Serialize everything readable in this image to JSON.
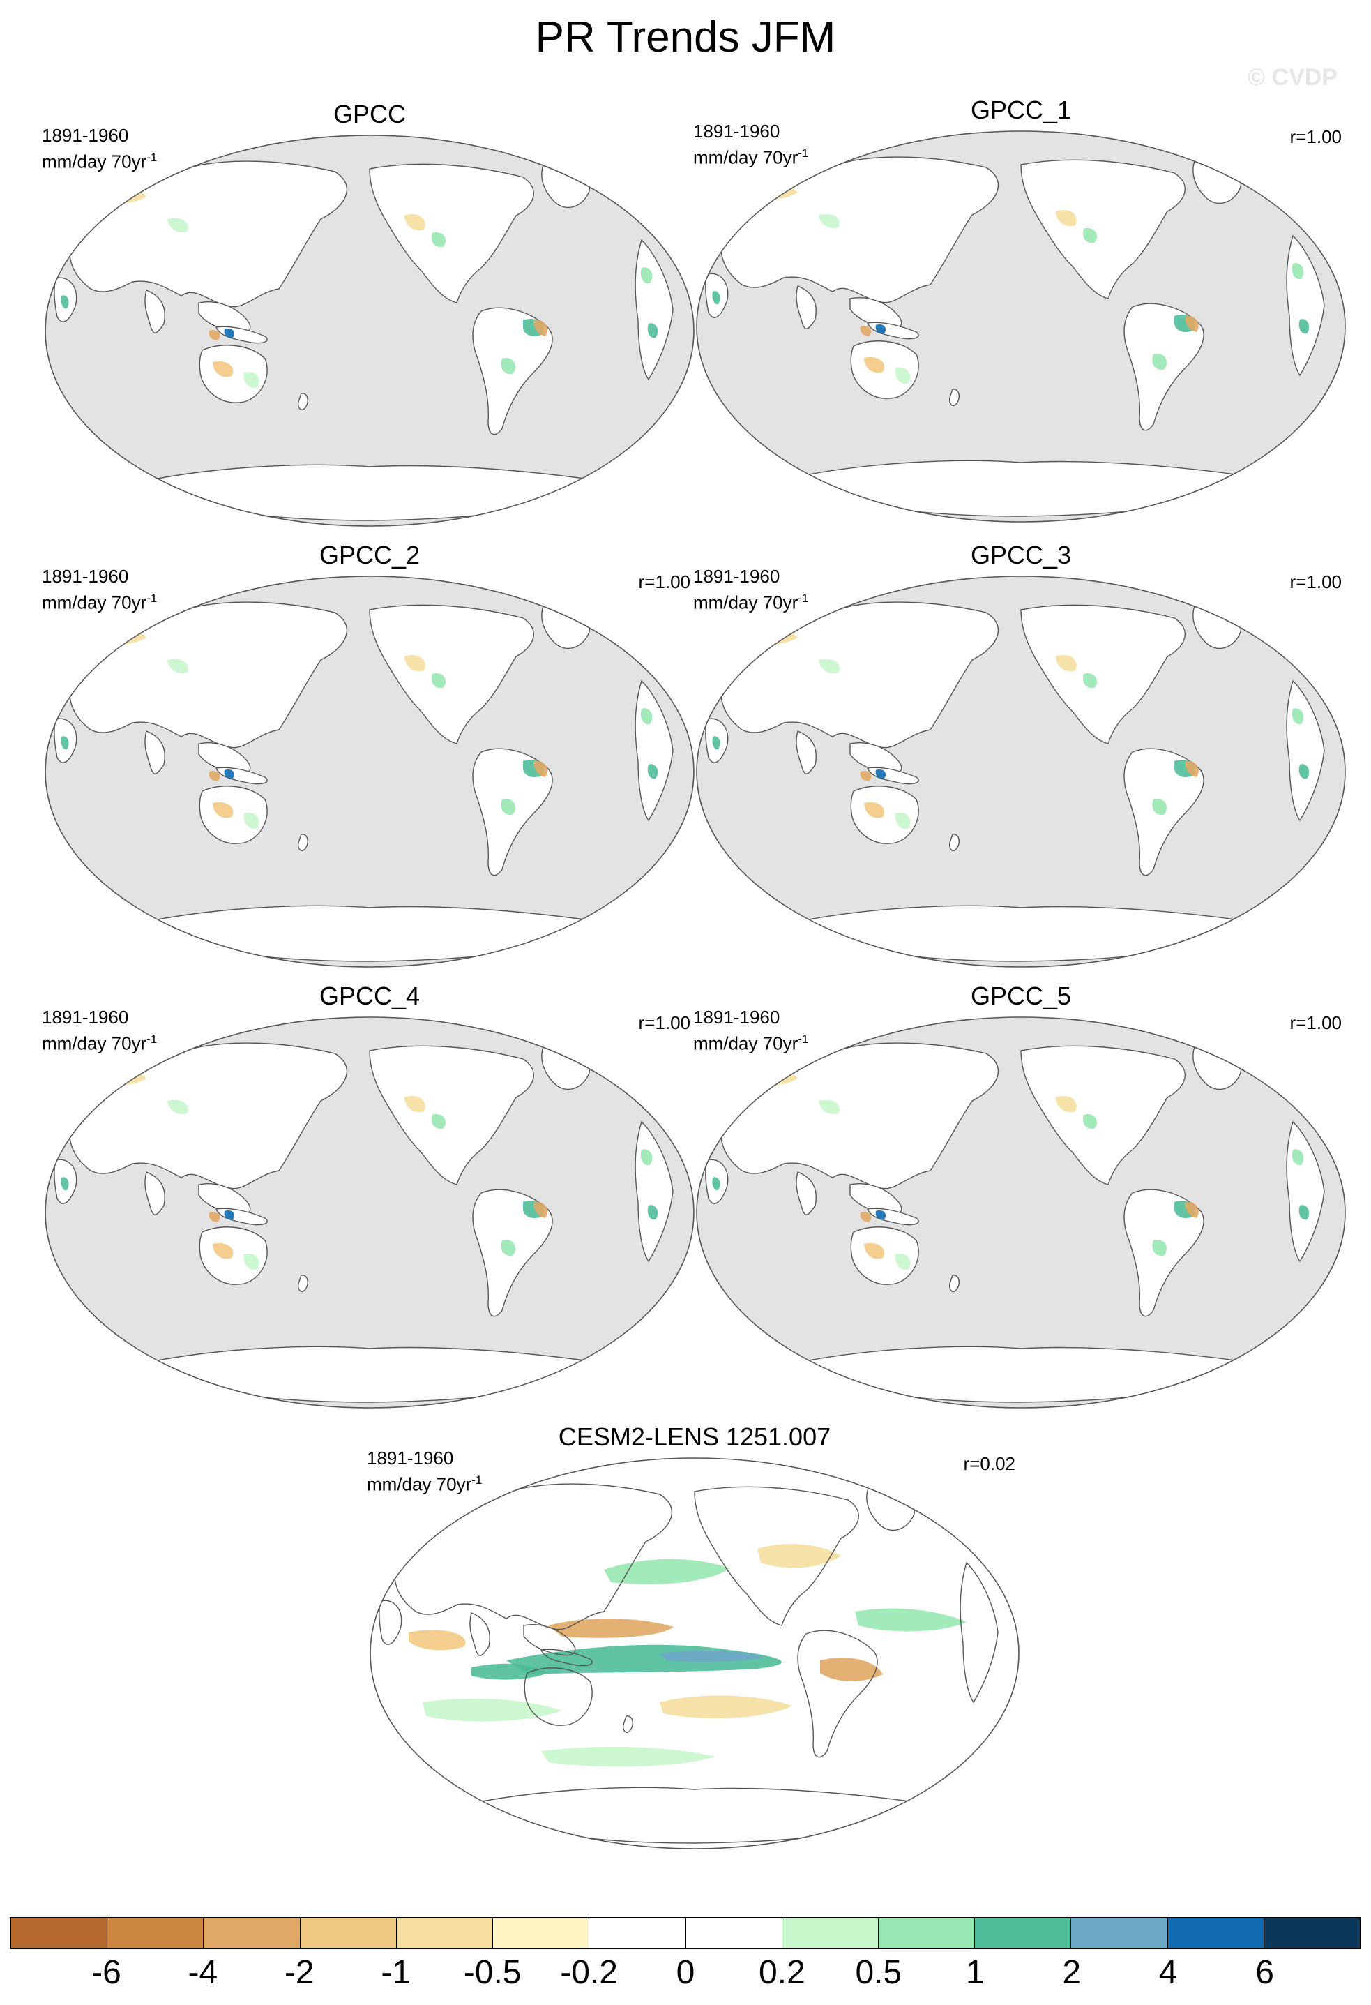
{
  "title": "PR Trends JFM",
  "watermark": "© CVDP",
  "panels": [
    {
      "title": "GPCC",
      "period": "1891-1960",
      "units": "mm/day 70yr",
      "units_exp": "-1",
      "corr": "",
      "type": "obs"
    },
    {
      "title": "GPCC_1",
      "period": "1891-1960",
      "units": "mm/day 70yr",
      "units_exp": "-1",
      "corr": "r=1.00",
      "type": "obs"
    },
    {
      "title": "GPCC_2",
      "period": "1891-1960",
      "units": "mm/day 70yr",
      "units_exp": "-1",
      "corr": "r=1.00",
      "type": "obs"
    },
    {
      "title": "GPCC_3",
      "period": "1891-1960",
      "units": "mm/day 70yr",
      "units_exp": "-1",
      "corr": "r=1.00",
      "type": "obs"
    },
    {
      "title": "GPCC_4",
      "period": "1891-1960",
      "units": "mm/day 70yr",
      "units_exp": "-1",
      "corr": "r=1.00",
      "type": "obs"
    },
    {
      "title": "GPCC_5",
      "period": "1891-1960",
      "units": "mm/day 70yr",
      "units_exp": "-1",
      "corr": "r=1.00",
      "type": "obs"
    },
    {
      "title": "CESM2-LENS 1251.007",
      "period": "1891-1960",
      "units": "mm/day 70yr",
      "units_exp": "-1",
      "corr": "r=0.02",
      "type": "model"
    }
  ],
  "colorbar": {
    "colors": [
      "#b5692d",
      "#cd8640",
      "#e0a865",
      "#f2c983",
      "#f5dea0",
      "#fff5c3",
      "#ffffff",
      "#ffffff",
      "#c8f6cb",
      "#99e8b3",
      "#4fbd99",
      "#6fa9c9",
      "#0f6aaf",
      "#0b3858"
    ],
    "labels": [
      "-6",
      "-4",
      "-2",
      "-1",
      "-0.5",
      "-0.2",
      "0",
      "0.2",
      "0.5",
      "1",
      "2",
      "4",
      "6"
    ]
  },
  "map_colors": {
    "ocean_missing": "#e3e3e3",
    "land": "#ffffff",
    "coast": "#555555"
  }
}
